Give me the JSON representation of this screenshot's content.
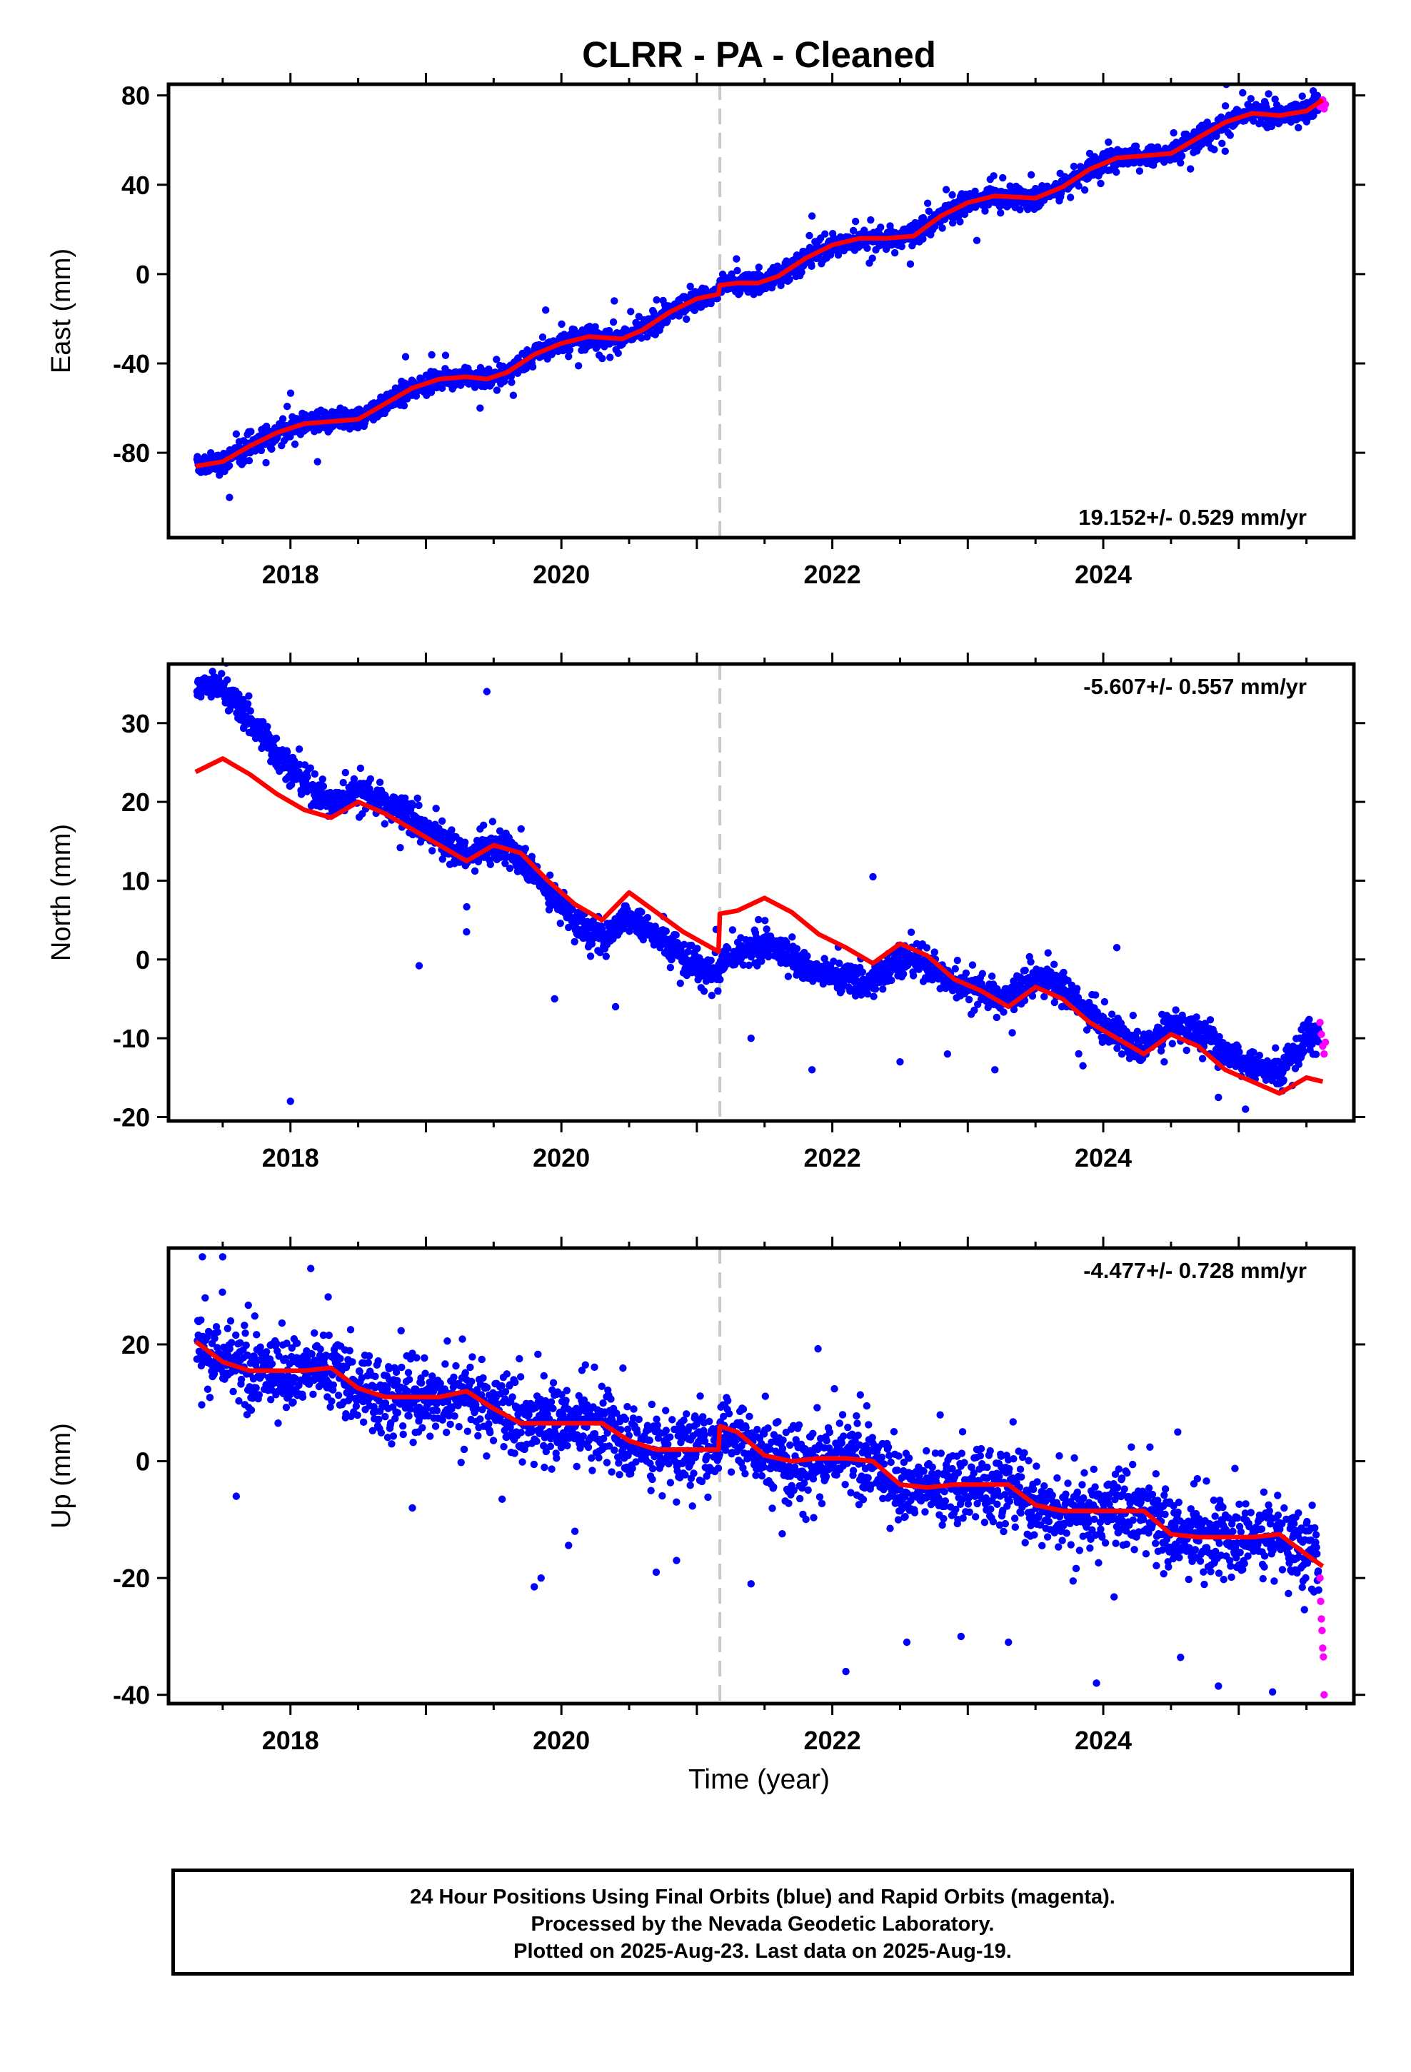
{
  "title": "CLRR  - PA - Cleaned",
  "xlabel": "Time (year)",
  "footer": {
    "line1": "24 Hour Positions Using Final Orbits (blue) and Rapid Orbits (magenta).",
    "line2": "Processed by the Nevada Geodetic Laboratory.",
    "line3": "Plotted on 2025-Aug-23. Last data on 2025-Aug-19."
  },
  "colors": {
    "final": "#0000ff",
    "rapid": "#ff00ff",
    "model": "#ff0000",
    "event_line": "#c8c8c8"
  },
  "chart_data": [
    {
      "type": "scatter",
      "component": "east",
      "ylabel": "East (mm)",
      "rate_text": "19.152+/- 0.529 mm/yr",
      "rate_position": "bottom-right",
      "xlim": [
        2017.1,
        2025.85
      ],
      "ylim": [
        -118,
        85
      ],
      "xticks": [
        2018,
        2020,
        2022,
        2024
      ],
      "yticks": [
        -80,
        -40,
        0,
        40,
        80
      ],
      "event_line_x": 2021.17,
      "model": [
        [
          2017.3,
          -86
        ],
        [
          2017.5,
          -84
        ],
        [
          2017.7,
          -77
        ],
        [
          2017.9,
          -71
        ],
        [
          2018.1,
          -67
        ],
        [
          2018.3,
          -66
        ],
        [
          2018.5,
          -65
        ],
        [
          2018.7,
          -58
        ],
        [
          2018.9,
          -51
        ],
        [
          2019.1,
          -47
        ],
        [
          2019.3,
          -46
        ],
        [
          2019.45,
          -47
        ],
        [
          2019.6,
          -44
        ],
        [
          2019.8,
          -36
        ],
        [
          2020.0,
          -31
        ],
        [
          2020.2,
          -28
        ],
        [
          2020.45,
          -29
        ],
        [
          2020.6,
          -25
        ],
        [
          2020.8,
          -17
        ],
        [
          2021.0,
          -11
        ],
        [
          2021.16,
          -9
        ],
        [
          2021.17,
          -5
        ],
        [
          2021.3,
          -4
        ],
        [
          2021.45,
          -4
        ],
        [
          2021.6,
          -1
        ],
        [
          2021.8,
          7
        ],
        [
          2022.0,
          13
        ],
        [
          2022.2,
          16
        ],
        [
          2022.4,
          16
        ],
        [
          2022.6,
          17
        ],
        [
          2022.8,
          26
        ],
        [
          2023.0,
          32
        ],
        [
          2023.2,
          35
        ],
        [
          2023.5,
          34
        ],
        [
          2023.7,
          39
        ],
        [
          2023.9,
          47
        ],
        [
          2024.1,
          52
        ],
        [
          2024.3,
          53
        ],
        [
          2024.5,
          54
        ],
        [
          2024.7,
          61
        ],
        [
          2024.9,
          68
        ],
        [
          2025.1,
          72
        ],
        [
          2025.3,
          71
        ],
        [
          2025.5,
          73
        ],
        [
          2025.62,
          78
        ]
      ],
      "noise": 3.2,
      "spread": 9,
      "outliers": [
        [
          2018.85,
          -37
        ],
        [
          2019.4,
          -60
        ],
        [
          2021.85,
          26
        ],
        [
          2023.9,
          54
        ],
        [
          2024.9,
          55
        ],
        [
          2025.55,
          82
        ],
        [
          2017.55,
          -100
        ],
        [
          2018.2,
          -84
        ]
      ],
      "rapid": [
        [
          2025.6,
          75
        ],
        [
          2025.61,
          77
        ],
        [
          2025.62,
          78
        ],
        [
          2025.63,
          74
        ],
        [
          2025.64,
          76
        ]
      ]
    },
    {
      "type": "scatter",
      "component": "north",
      "ylabel": "North (mm)",
      "rate_text": "-5.607+/- 0.557 mm/yr",
      "rate_position": "top-right",
      "xlim": [
        2017.1,
        2025.85
      ],
      "ylim": [
        -20.5,
        37.5
      ],
      "xticks": [
        2018,
        2020,
        2022,
        2024
      ],
      "yticks": [
        -20,
        -10,
        0,
        10,
        20,
        30
      ],
      "event_line_x": 2021.17,
      "model": [
        [
          2017.3,
          23.8
        ],
        [
          2017.5,
          25.5
        ],
        [
          2017.7,
          23.5
        ],
        [
          2017.9,
          21
        ],
        [
          2018.1,
          19
        ],
        [
          2018.3,
          18
        ],
        [
          2018.5,
          20
        ],
        [
          2018.7,
          18.5
        ],
        [
          2018.9,
          16.5
        ],
        [
          2019.1,
          14.5
        ],
        [
          2019.3,
          12.5
        ],
        [
          2019.5,
          14.5
        ],
        [
          2019.7,
          13.5
        ],
        [
          2019.9,
          10
        ],
        [
          2020.1,
          7
        ],
        [
          2020.3,
          5
        ],
        [
          2020.5,
          8.5
        ],
        [
          2020.7,
          6
        ],
        [
          2020.9,
          3.5
        ],
        [
          2021.16,
          1
        ],
        [
          2021.17,
          5.8
        ],
        [
          2021.3,
          6.2
        ],
        [
          2021.5,
          7.8
        ],
        [
          2021.7,
          6
        ],
        [
          2021.9,
          3.2
        ],
        [
          2022.1,
          1.5
        ],
        [
          2022.3,
          -0.5
        ],
        [
          2022.5,
          2
        ],
        [
          2022.7,
          0.5
        ],
        [
          2022.9,
          -2.5
        ],
        [
          2023.1,
          -4
        ],
        [
          2023.3,
          -6
        ],
        [
          2023.5,
          -3.5
        ],
        [
          2023.7,
          -5
        ],
        [
          2023.9,
          -8
        ],
        [
          2024.1,
          -10
        ],
        [
          2024.3,
          -12
        ],
        [
          2024.5,
          -9.5
        ],
        [
          2024.7,
          -11
        ],
        [
          2024.9,
          -14
        ],
        [
          2025.1,
          -15.5
        ],
        [
          2025.3,
          -17
        ],
        [
          2025.5,
          -15
        ],
        [
          2025.62,
          -15.5
        ]
      ],
      "bias": [
        [
          2017.3,
          11
        ],
        [
          2017.8,
          6
        ],
        [
          2018.3,
          2
        ],
        [
          2019.0,
          1
        ],
        [
          2019.6,
          0
        ],
        [
          2020.2,
          -2.5
        ],
        [
          2020.8,
          -3
        ],
        [
          2021.16,
          -3
        ],
        [
          2021.17,
          -6
        ],
        [
          2021.8,
          -5.5
        ],
        [
          2022.4,
          -2
        ],
        [
          2023.0,
          0
        ],
        [
          2023.6,
          1.5
        ],
        [
          2024.2,
          0.5
        ],
        [
          2024.8,
          2
        ],
        [
          2025.3,
          2.5
        ],
        [
          2025.62,
          7
        ]
      ],
      "noise": 1.3,
      "spread": 3,
      "outliers": [
        [
          2019.45,
          34
        ],
        [
          2018.95,
          -0.8
        ],
        [
          2018.0,
          -18
        ],
        [
          2019.3,
          3.5
        ],
        [
          2019.95,
          -5
        ],
        [
          2020.4,
          -6
        ],
        [
          2021.4,
          -10
        ],
        [
          2021.85,
          -14
        ],
        [
          2022.3,
          10.5
        ],
        [
          2022.5,
          -13
        ],
        [
          2022.85,
          -12
        ],
        [
          2023.2,
          -14
        ],
        [
          2023.85,
          -13.5
        ],
        [
          2024.1,
          1.5
        ],
        [
          2024.45,
          -13
        ],
        [
          2024.85,
          -17.5
        ],
        [
          2025.05,
          -19
        ]
      ],
      "rapid": [
        [
          2025.6,
          -8
        ],
        [
          2025.61,
          -9.5
        ],
        [
          2025.62,
          -11
        ],
        [
          2025.63,
          -12
        ],
        [
          2025.64,
          -10.5
        ]
      ]
    },
    {
      "type": "scatter",
      "component": "up",
      "ylabel": "Up (mm)",
      "rate_text": "-4.477+/- 0.728 mm/yr",
      "rate_position": "top-right",
      "xlim": [
        2017.1,
        2025.85
      ],
      "ylim": [
        -41.5,
        36.5
      ],
      "xticks": [
        2018,
        2020,
        2022,
        2024
      ],
      "yticks": [
        -40,
        -20,
        0,
        20
      ],
      "event_line_x": 2021.17,
      "model": [
        [
          2017.3,
          20.5
        ],
        [
          2017.5,
          17
        ],
        [
          2017.7,
          15.5
        ],
        [
          2017.9,
          15.5
        ],
        [
          2018.1,
          15.5
        ],
        [
          2018.3,
          16
        ],
        [
          2018.5,
          12.5
        ],
        [
          2018.7,
          11
        ],
        [
          2018.9,
          11
        ],
        [
          2019.1,
          11
        ],
        [
          2019.3,
          12
        ],
        [
          2019.5,
          9
        ],
        [
          2019.7,
          6.5
        ],
        [
          2019.9,
          6.5
        ],
        [
          2020.1,
          6.5
        ],
        [
          2020.3,
          6.5
        ],
        [
          2020.5,
          3.5
        ],
        [
          2020.7,
          2
        ],
        [
          2020.9,
          2
        ],
        [
          2021.16,
          2
        ],
        [
          2021.17,
          6
        ],
        [
          2021.3,
          5
        ],
        [
          2021.5,
          1
        ],
        [
          2021.7,
          0
        ],
        [
          2021.9,
          0.5
        ],
        [
          2022.1,
          0.5
        ],
        [
          2022.3,
          0
        ],
        [
          2022.5,
          -4
        ],
        [
          2022.7,
          -4.5
        ],
        [
          2022.9,
          -4
        ],
        [
          2023.1,
          -4
        ],
        [
          2023.3,
          -4
        ],
        [
          2023.5,
          -7.5
        ],
        [
          2023.7,
          -8.5
        ],
        [
          2023.9,
          -8.5
        ],
        [
          2024.1,
          -8.5
        ],
        [
          2024.3,
          -8.5
        ],
        [
          2024.5,
          -12.5
        ],
        [
          2024.7,
          -13
        ],
        [
          2024.9,
          -13
        ],
        [
          2025.1,
          -13
        ],
        [
          2025.3,
          -12.5
        ],
        [
          2025.5,
          -16
        ],
        [
          2025.62,
          -18
        ]
      ],
      "noise": 4.2,
      "spread": 10,
      "outliers": [
        [
          2017.35,
          35
        ],
        [
          2017.5,
          35
        ],
        [
          2017.6,
          -6
        ],
        [
          2018.15,
          33
        ],
        [
          2018.9,
          -8
        ],
        [
          2019.8,
          -21.5
        ],
        [
          2019.85,
          -20
        ],
        [
          2020.1,
          -12
        ],
        [
          2020.7,
          -19
        ],
        [
          2020.85,
          -17
        ],
        [
          2021.4,
          -21
        ],
        [
          2022.1,
          -36
        ],
        [
          2022.55,
          -31
        ],
        [
          2022.95,
          -30
        ],
        [
          2023.3,
          -31
        ],
        [
          2023.95,
          -38
        ],
        [
          2024.55,
          5
        ],
        [
          2024.85,
          -38.5
        ],
        [
          2025.25,
          -39.5
        ]
      ],
      "rapid": [
        [
          2025.6,
          -20
        ],
        [
          2025.605,
          -24
        ],
        [
          2025.61,
          -27
        ],
        [
          2025.615,
          -29
        ],
        [
          2025.62,
          -32
        ],
        [
          2025.625,
          -33.5
        ],
        [
          2025.63,
          -40
        ]
      ]
    }
  ]
}
